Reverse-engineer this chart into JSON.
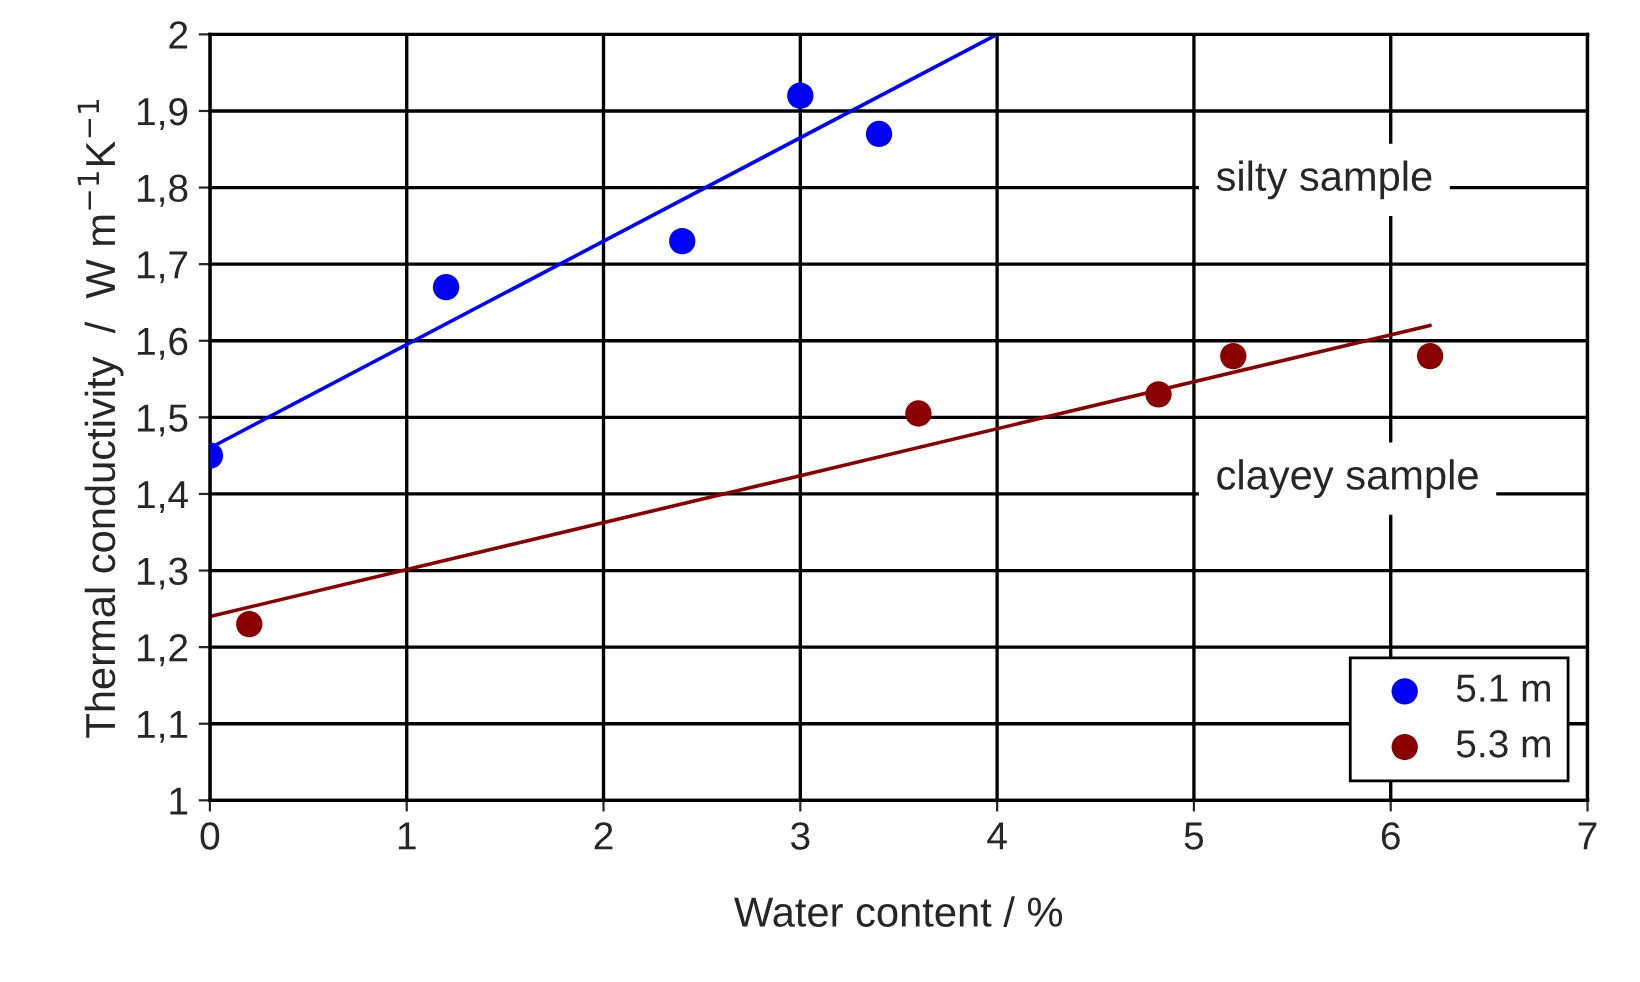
{
  "chart_data": {
    "type": "scatter",
    "xlabel": "Water content / %",
    "ylabel": "Thermal conductivity  /  W m$^{−1}$K$^{−1}$",
    "series": [
      {
        "name": "5.1 m",
        "color": "#0000ff",
        "x": [
          0,
          1.2,
          2.4,
          3.0,
          3.4
        ],
        "values": [
          1.45,
          1.67,
          1.73,
          1.92,
          1.87
        ]
      },
      {
        "name": "5.3 m",
        "color": "#8b0000",
        "x": [
          0.2,
          3.6,
          4.82,
          5.2,
          6.2
        ],
        "values": [
          1.23,
          1.505,
          1.53,
          1.58,
          1.58
        ]
      },
      {
        "color": "#0000ff",
        "type": "line",
        "x": [
          0,
          4.0
        ],
        "values": [
          1.46,
          2.0
        ]
      },
      {
        "color": "#8b0000",
        "type": "line",
        "x": [
          0,
          6.2
        ],
        "values": [
          1.24,
          1.62
        ]
      }
    ],
    "annotations": [
      "silty sample",
      "clayey sample"
    ],
    "xlim": [
      0,
      7
    ],
    "ylim": [
      1,
      2
    ],
    "xticks": [
      0,
      1,
      2,
      3,
      4,
      5,
      6,
      7
    ],
    "yticks": [
      1,
      {
        "value": 1.1,
        "label": "1,1"
      },
      {
        "value": 1.2,
        "label": "1,2"
      },
      {
        "value": 1.3,
        "label": "1,3"
      },
      {
        "value": 1.4,
        "label": "1,4"
      },
      {
        "value": 1.5,
        "label": "1,5"
      },
      {
        "value": 1.6,
        "label": "1,6"
      },
      {
        "value": 1.7,
        "label": "1,7"
      },
      {
        "value": 1.8,
        "label": "1,8"
      },
      {
        "value": 1.9,
        "label": "1,9"
      },
      2
    ],
    "grid": true,
    "legend": "bottom right"
  }
}
